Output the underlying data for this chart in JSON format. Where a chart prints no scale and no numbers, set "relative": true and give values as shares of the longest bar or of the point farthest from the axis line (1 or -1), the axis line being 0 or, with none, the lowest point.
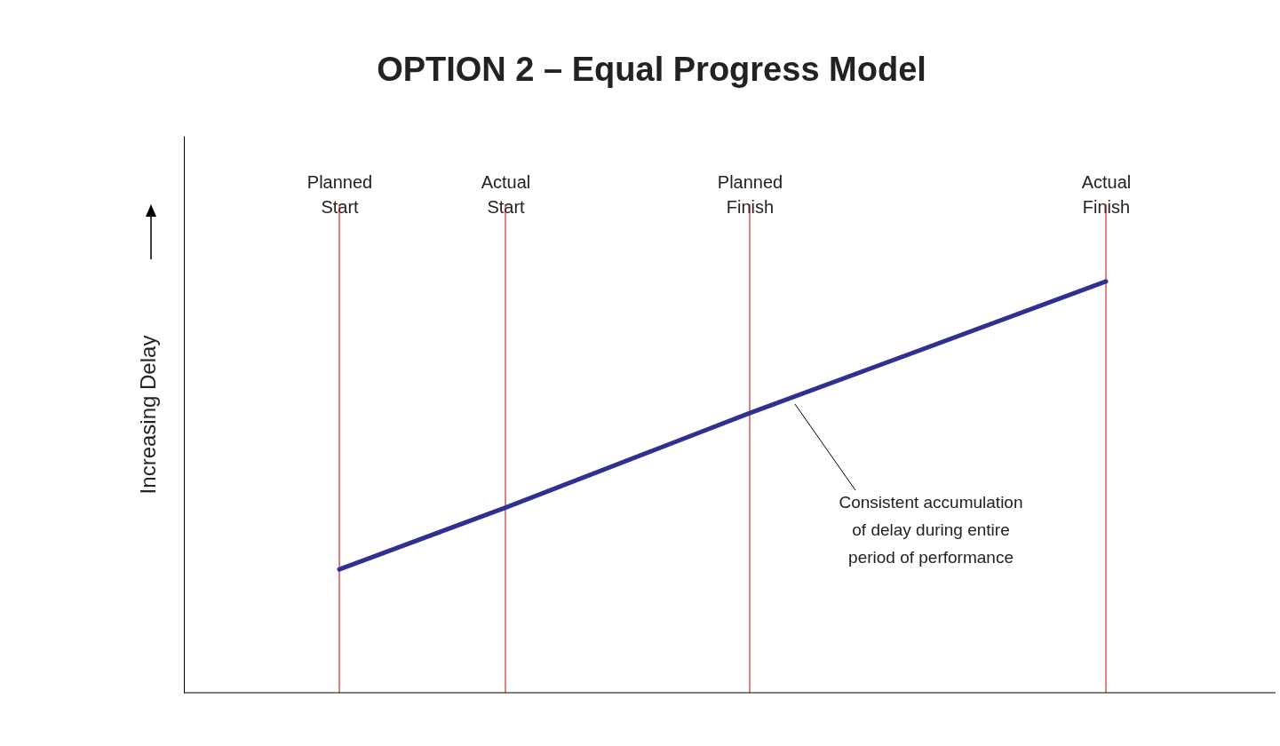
{
  "chart_data": {
    "type": "line",
    "title": "OPTION 2 – Equal Progress Model",
    "ylabel": "Increasing Delay",
    "relative": true,
    "categories": [
      "Planned\nStart",
      "Actual\nStart",
      "Planned\nFinish",
      "Actual\nFinish"
    ],
    "tick_labels": "x",
    "grid": "x",
    "marker": "none",
    "series": [
      {
        "color": "#2e3192",
        "values": [
          0.3,
          0.45,
          0.68,
          1
        ]
      }
    ],
    "annotations": [
      "Consistent  accumulation\nof delay during entire\nperiod of performance"
    ]
  }
}
